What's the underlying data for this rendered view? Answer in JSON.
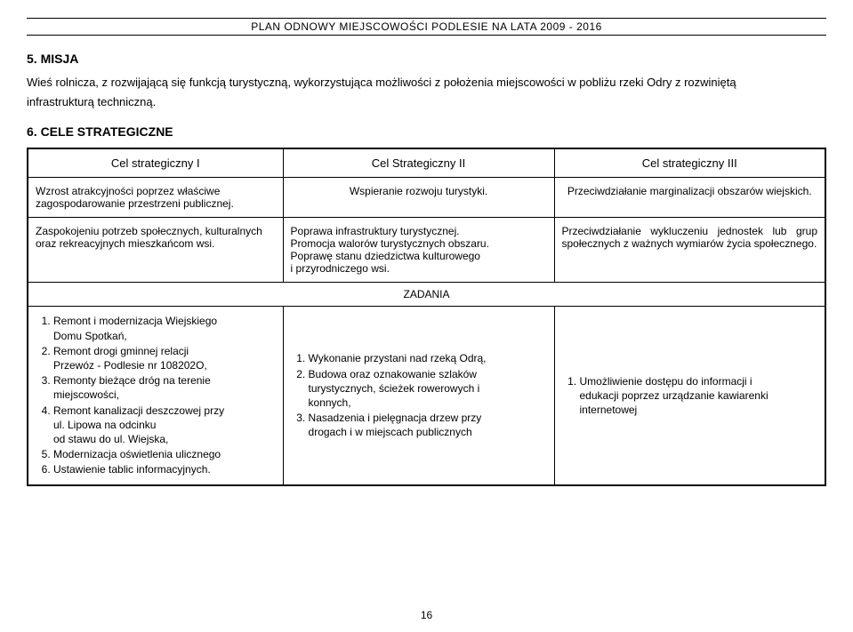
{
  "header": {
    "title": "PLAN ODNOWY MIEJSCOWOŚCI PODLESIE NA LATA 2009 - 2016"
  },
  "sections": {
    "misja": {
      "heading": "5.  MISJA",
      "paragraph": "Wieś rolnicza, z rozwijającą się funkcją turystyczną, wykorzystująca możliwości z położenia miejscowości w pobliżu rzeki Odry z rozwiniętą",
      "paragraph_line2": "infrastrukturą techniczną."
    },
    "cele": {
      "heading": "6.  CELE STRATEGICZNE"
    }
  },
  "table": {
    "header_row": {
      "col1": "Cel strategiczny I",
      "col2": "Cel Strategiczny II",
      "col3": "Cel strategiczny III"
    },
    "row1": {
      "col1": "Wzrost atrakcyjności poprzez właściwe zagospodarowanie przestrzeni publicznej.",
      "col2": "Wspieranie rozwoju turystyki.",
      "col3": "Przeciwdziałanie marginalizacji obszarów wiejskich."
    },
    "row2": {
      "col1": "Zaspokojeniu potrzeb społecznych, kulturalnych oraz rekreacyjnych mieszkańcom wsi.",
      "col2_l1": "Poprawa infrastruktury turystycznej.",
      "col2_l2": "Promocja walorów turystycznych obszaru.",
      "col2_l3": "Poprawę stanu dziedzictwa kulturowego",
      "col2_l4": "i przyrodniczego wsi.",
      "col3": " Przeciwdziałanie wykluczeniu jednostek lub grup społecznych z ważnych wymiarów życia społecznego."
    },
    "zadania_label": "ZADANIA",
    "tasks": {
      "col1": {
        "t1a": "Remont i modernizacja Wiejskiego",
        "t1b": "Domu Spotkań,",
        "t2a": "Remont drogi gminnej relacji",
        "t2b": "Przewóz - Podlesie nr 108202O,",
        "t3a": "Remonty bieżące dróg na terenie",
        "t3b": "miejscowości,",
        "t4a": "Remont kanalizacji deszczowej przy",
        "t4b": "ul. Lipowa na odcinku",
        "t4c": "od stawu do ul. Wiejska,",
        "t5": "Modernizacja oświetlenia ulicznego",
        "t6": "Ustawienie tablic informacyjnych."
      },
      "col2": {
        "t1": "Wykonanie przystani nad rzeką Odrą,",
        "t2a": "Budowa oraz oznakowanie szlaków",
        "t2b": "turystycznych, ścieżek rowerowych i",
        "t2c": "konnych,",
        "t3a": "Nasadzenia i pielęgnacja drzew przy",
        "t3b": "drogach i w miejscach publicznych"
      },
      "col3": {
        "t1a": "Umożliwienie dostępu do informacji i",
        "t1b": "edukacji poprzez urządzanie kawiarenki",
        "t1c": "internetowej"
      }
    }
  },
  "page_number": "16"
}
